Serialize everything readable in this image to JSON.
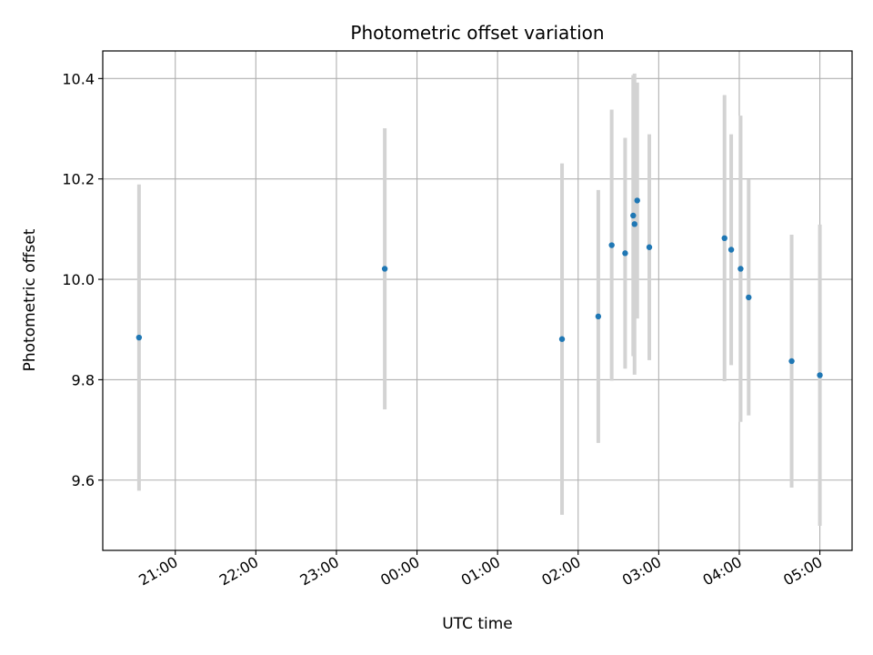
{
  "chart_data": {
    "type": "scatter",
    "title": "Photometric offset variation",
    "xlabel": "UTC time",
    "ylabel": "Photometric offset",
    "x_unit": "hours (UTC, values ≥ 24 are after midnight)",
    "xlim": [
      "20:06",
      "05:24"
    ],
    "ylim": [
      9.46,
      10.455
    ],
    "grid": true,
    "x_ticks": [
      "21:00",
      "22:00",
      "23:00",
      "00:00",
      "01:00",
      "02:00",
      "03:00",
      "04:00",
      "05:00"
    ],
    "y_ticks": [
      "9.6",
      "9.8",
      "10.0",
      "10.2",
      "10.4"
    ],
    "colors": {
      "marker": "#1f77b4",
      "errorbar": "#d3d3d3",
      "grid": "#b0b0b0"
    },
    "series": [
      {
        "points": [
          {
            "t": "20:33",
            "y": 9.884,
            "err": 0.305
          },
          {
            "t": "23:36",
            "y": 10.021,
            "err": 0.28
          },
          {
            "t": "01:48",
            "y": 9.881,
            "err": 0.35
          },
          {
            "t": "02:15",
            "y": 9.926,
            "err": 0.252
          },
          {
            "t": "02:25",
            "y": 10.068,
            "err": 0.27
          },
          {
            "t": "02:35",
            "y": 10.052,
            "err": 0.23
          },
          {
            "t": "02:41",
            "y": 10.127,
            "err": 0.28
          },
          {
            "t": "02:42",
            "y": 10.11,
            "err": 0.3
          },
          {
            "t": "02:44",
            "y": 10.157,
            "err": 0.235
          },
          {
            "t": "02:53",
            "y": 10.064,
            "err": 0.225
          },
          {
            "t": "03:49",
            "y": 10.082,
            "err": 0.285
          },
          {
            "t": "03:54",
            "y": 10.059,
            "err": 0.23
          },
          {
            "t": "04:01",
            "y": 10.021,
            "err": 0.305
          },
          {
            "t": "04:07",
            "y": 9.964,
            "err": 0.235
          },
          {
            "t": "04:39",
            "y": 9.837,
            "err": 0.252
          },
          {
            "t": "05:00",
            "y": 9.809,
            "err": 0.3
          }
        ]
      }
    ]
  }
}
